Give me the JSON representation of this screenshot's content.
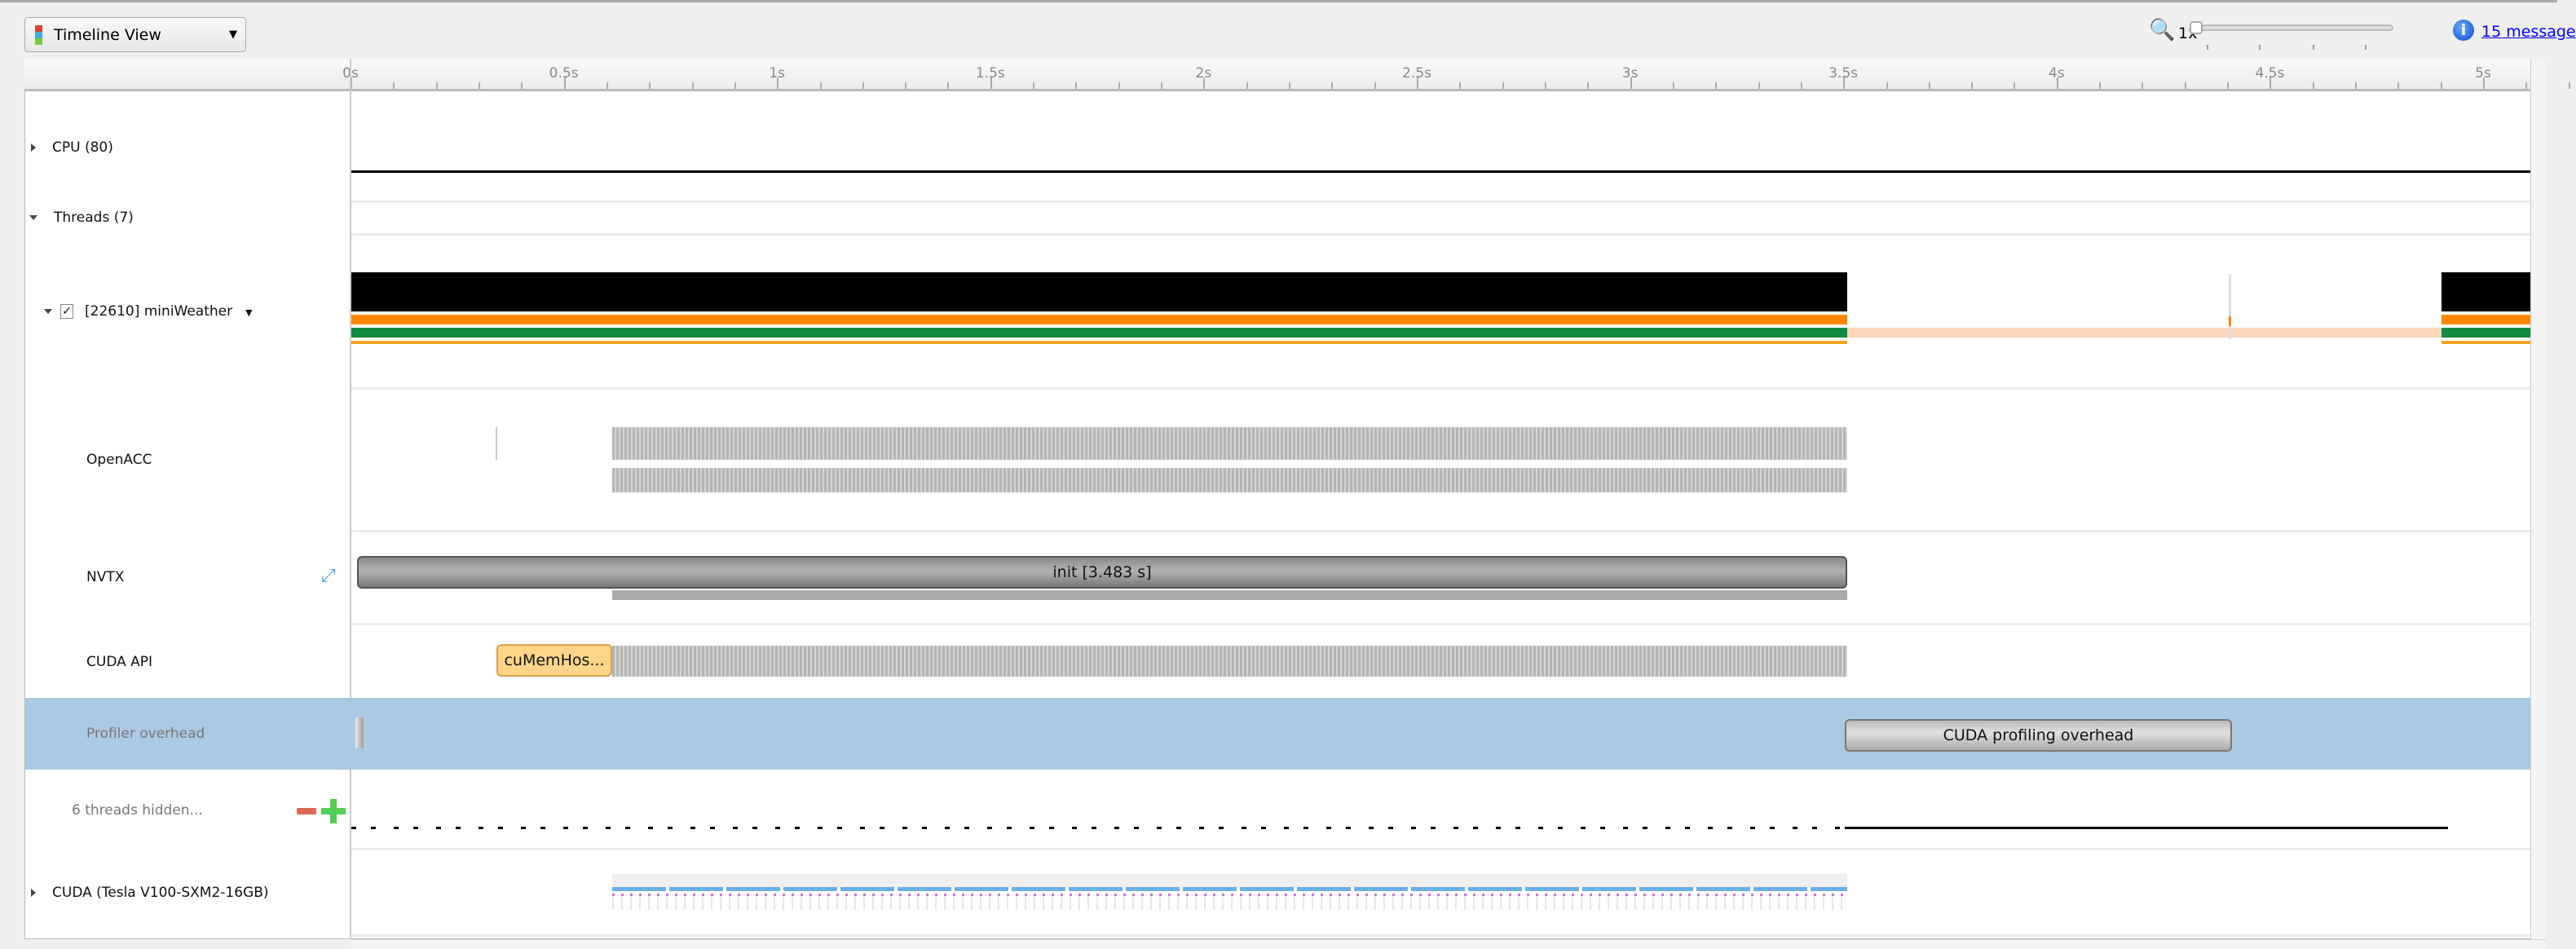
{
  "toolbar": {
    "view_label": "Timeline View",
    "view_icon": "stacked-bars-icon",
    "zoom_label": "1x",
    "zoom_level_fraction": 0,
    "messages_label": "15 message"
  },
  "ruler": {
    "ticks": [
      "0s",
      "0.5s",
      "1s",
      "1.5s",
      "2s",
      "2.5s",
      "3s",
      "3.5s",
      "4s",
      "4.5s",
      "5s"
    ]
  },
  "rows": {
    "cpu": "CPU (80)",
    "threads": "Threads (7)",
    "thread": "[22610] miniWeather",
    "openacc": "OpenACC",
    "nvtx": "NVTX",
    "cuda_api": "CUDA API",
    "profiler": "Profiler overhead",
    "hidden": "6 threads hidden...",
    "cuda": "CUDA (Tesla V100-SXM2-16GB)"
  },
  "events": {
    "nvtx_range": "init [3.483 s]",
    "cuda_api_call": "cuMemHos...",
    "overhead": "CUDA profiling overhead"
  },
  "colors": {
    "selection": "#acc9e3",
    "thread_running": "#ff8800",
    "thread_green": "#138a43",
    "idle": "#fcd6bd",
    "cuda_api_highlight": "#ffd58a"
  }
}
